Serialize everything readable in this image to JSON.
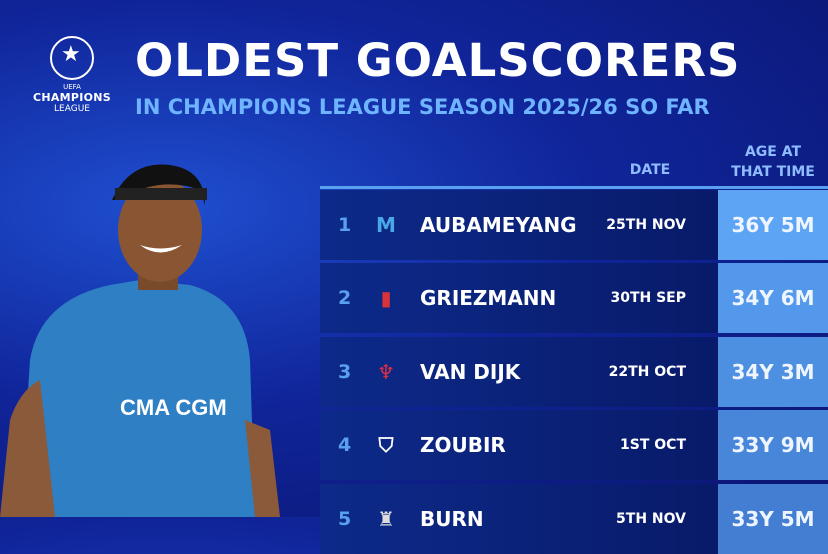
{
  "logo": {
    "line1": "UEFA",
    "line2": "CHAMPIONS",
    "line3": "LEAGUE"
  },
  "title": "OLDEST GOALSCORERS",
  "subtitle": "IN CHAMPIONS LEAGUE SEASON 2025/26 SO FAR",
  "headers": {
    "date": "DATE",
    "age_line1": "AGE AT",
    "age_line2": "THAT TIME"
  },
  "colors": {
    "accent": "#5aa0f0",
    "row_bg": "#0d2a8a",
    "subtitle": "#6fb4ff"
  },
  "rows": [
    {
      "rank": "1",
      "crest": "marseille-crest-icon",
      "name": "AUBAMEYANG",
      "date": "25TH NOV",
      "age": "36Y 5M",
      "age_color": "#5ea4f4"
    },
    {
      "rank": "2",
      "crest": "atletico-madrid-crest-icon",
      "name": "GRIEZMANN",
      "date": "30TH SEP",
      "age": "34Y 6M",
      "age_color": "#5398ea"
    },
    {
      "rank": "3",
      "crest": "liverpool-crest-icon",
      "name": "VAN DIJK",
      "date": "22TH OCT",
      "age": "34Y 3M",
      "age_color": "#4d90e2"
    },
    {
      "rank": "4",
      "crest": "qarabag-crest-icon",
      "name": "ZOUBIR",
      "date": "1ST OCT",
      "age": "33Y 9M",
      "age_color": "#4886da"
    },
    {
      "rank": "5",
      "crest": "newcastle-crest-icon",
      "name": "BURN",
      "date": "5TH NOV",
      "age": "33Y 5M",
      "age_color": "#437ed2"
    }
  ],
  "player_shirt": {
    "sponsor": "CMA CGM"
  }
}
